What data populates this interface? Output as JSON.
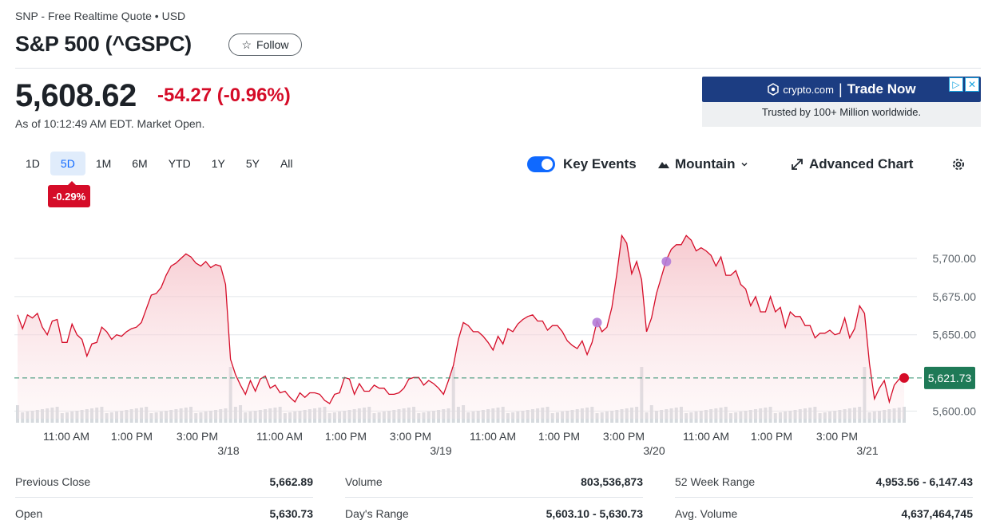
{
  "header": {
    "subtitle": "SNP - Free Realtime Quote • USD",
    "title": "S&P 500 (^GSPC)",
    "follow_label": "Follow"
  },
  "quote": {
    "price": "5,608.62",
    "change": "-54.27 (-0.96%)",
    "as_of": "As of 10:12:49 AM EDT. Market Open."
  },
  "ad": {
    "brand": "crypto.com",
    "cta": "Trade Now",
    "tagline": "Trusted by 100+ Million worldwide."
  },
  "ranges": [
    "1D",
    "5D",
    "1M",
    "6M",
    "YTD",
    "1Y",
    "5Y",
    "All"
  ],
  "active_range": "5D",
  "range_change": "-0.29%",
  "toolbar": {
    "key_events": "Key Events",
    "key_events_on": true,
    "chart_type": "Mountain",
    "advanced": "Advanced Chart"
  },
  "chart_data": {
    "type": "area",
    "ylim": [
      5595,
      5723
    ],
    "ytick_labels": [
      "5,700.00",
      "5,675.00",
      "5,650.00",
      "5,600.00"
    ],
    "current_label": "5,621.73",
    "x_tick_labels": [
      "11:00 AM",
      "1:00 PM",
      "3:00 PM",
      "11:00 AM",
      "1:00 PM",
      "3:00 PM",
      "11:00 AM",
      "1:00 PM",
      "3:00 PM",
      "11:00 AM",
      "1:00 PM",
      "3:00 PM"
    ],
    "day_labels": [
      "3/18",
      "3/19",
      "3/20",
      "3/21"
    ],
    "previous_close": 5621.73,
    "series": [
      {
        "values": [
          5663,
          5654,
          5663,
          5661,
          5664,
          5655,
          5650,
          5659,
          5660,
          5645,
          5645,
          5657,
          5650,
          5647,
          5636,
          5644,
          5645,
          5655,
          5652,
          5647,
          5650,
          5649,
          5652,
          5654,
          5655,
          5658,
          5667,
          5676,
          5677,
          5681,
          5689,
          5695,
          5697,
          5700,
          5703,
          5701,
          5697,
          5695,
          5698,
          5694,
          5696,
          5695,
          5683,
          5634,
          5624,
          5617,
          5611,
          5620,
          5613,
          5621,
          5623,
          5615,
          5617,
          5612,
          5613,
          5609,
          5606,
          5612,
          5609,
          5612,
          5612,
          5611,
          5607,
          5605,
          5611,
          5612,
          5622,
          5621,
          5611,
          5618,
          5613,
          5613,
          5617,
          5615,
          5615,
          5611,
          5611,
          5612,
          5615,
          5621,
          5622,
          5622,
          5617,
          5620,
          5618,
          5615,
          5611,
          5620,
          5630,
          5647,
          5658,
          5656,
          5652,
          5652,
          5649,
          5645,
          5640,
          5649,
          5644,
          5654,
          5652,
          5657,
          5660,
          5662,
          5663,
          5659,
          5659,
          5653,
          5656,
          5656,
          5652,
          5646,
          5643,
          5641,
          5646,
          5637,
          5645,
          5659,
          5652,
          5655,
          5668,
          5690,
          5715,
          5710,
          5690,
          5698,
          5686,
          5652,
          5661,
          5677,
          5688,
          5699,
          5706,
          5709,
          5709,
          5715,
          5712,
          5705,
          5707,
          5705,
          5702,
          5695,
          5701,
          5689,
          5689,
          5692,
          5683,
          5680,
          5669,
          5675,
          5665,
          5665,
          5675,
          5665,
          5668,
          5655,
          5665,
          5662,
          5662,
          5656,
          5656,
          5648,
          5651,
          5651,
          5653,
          5650,
          5651,
          5661,
          5648,
          5654,
          5669,
          5664,
          5631,
          5608,
          5615,
          5620,
          5606,
          5617,
          5621,
          5621.73
        ]
      }
    ],
    "key_events": [
      {
        "index": 117,
        "value": 5658
      },
      {
        "index": 131,
        "value": 5698
      }
    ]
  },
  "stats": [
    {
      "label": "Previous Close",
      "value": "5,662.89"
    },
    {
      "label": "Volume",
      "value": "803,536,873"
    },
    {
      "label": "52 Week Range",
      "value": "4,953.56 - 6,147.43"
    },
    {
      "label": "Open",
      "value": "5,630.73"
    },
    {
      "label": "Day's Range",
      "value": "5,603.10 - 5,630.73"
    },
    {
      "label": "Avg. Volume",
      "value": "4,637,464,745"
    }
  ]
}
